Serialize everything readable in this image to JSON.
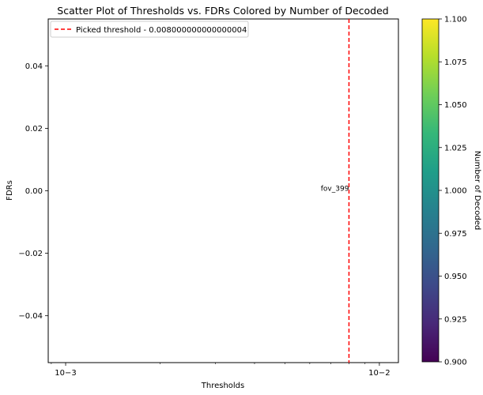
{
  "chart_data": {
    "type": "scatter",
    "title": "Scatter Plot of Thresholds vs. FDRs Colored by Number of Decoded",
    "xlabel": "Thresholds",
    "ylabel": "FDRs",
    "x_scale": "log",
    "xlim": [
      0.00088,
      0.0115
    ],
    "ylim": [
      -0.055,
      0.055
    ],
    "x_ticks": [
      {
        "value": 0.001,
        "label": "10−3"
      },
      {
        "value": 0.01,
        "label": "10−2"
      }
    ],
    "y_ticks": [
      {
        "value": 0.04,
        "label": "0.04"
      },
      {
        "value": 0.02,
        "label": "0.02"
      },
      {
        "value": 0.0,
        "label": "0.00"
      },
      {
        "value": -0.02,
        "label": "−0.02"
      },
      {
        "value": -0.04,
        "label": "−0.04"
      }
    ],
    "points": [
      {
        "x": 0.008,
        "y": 0.0,
        "label": "fov_399",
        "decoded": 1.0
      }
    ],
    "threshold_line": {
      "x": 0.008,
      "label": "Picked threshold - 0.008000000000000004",
      "color": "#ff0000",
      "style": "dashed"
    },
    "legend_position": "upper left",
    "grid": false,
    "colorbar": {
      "label": "Number of Decoded",
      "colormap": "viridis",
      "range": [
        0.9,
        1.1
      ],
      "ticks": [
        {
          "value": 1.1,
          "label": "1.100"
        },
        {
          "value": 1.075,
          "label": "1.075"
        },
        {
          "value": 1.05,
          "label": "1.050"
        },
        {
          "value": 1.025,
          "label": "1.025"
        },
        {
          "value": 1.0,
          "label": "1.000"
        },
        {
          "value": 0.975,
          "label": "0.975"
        },
        {
          "value": 0.95,
          "label": "0.950"
        },
        {
          "value": 0.925,
          "label": "0.925"
        },
        {
          "value": 0.9,
          "label": "0.900"
        }
      ],
      "stops": [
        "#440154",
        "#482878",
        "#3e4989",
        "#31688e",
        "#26828e",
        "#1f9e89",
        "#35b779",
        "#6ece58",
        "#b5de2b",
        "#fde725"
      ]
    }
  }
}
